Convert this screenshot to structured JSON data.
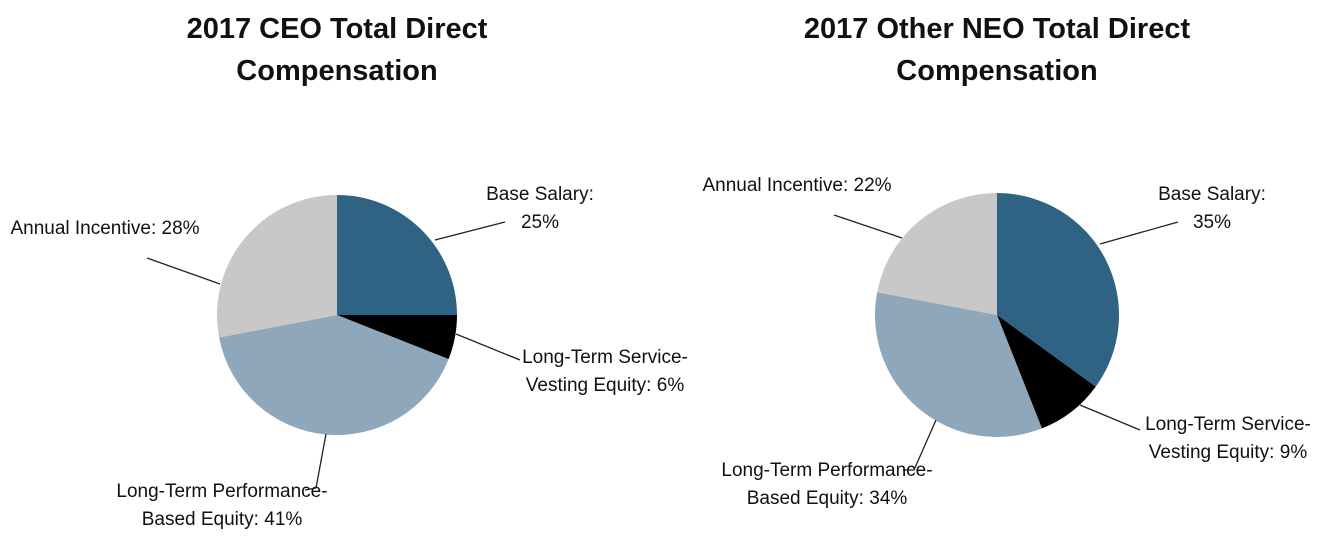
{
  "chart_data": [
    {
      "type": "pie",
      "title": "2017 CEO Total Direct Compensation",
      "categories": [
        "Base Salary:",
        "Long-Term Service-Vesting Equity:",
        "Long-Term Performance-Based Equity:",
        "Annual Incentive:"
      ],
      "values": [
        25,
        6,
        41,
        28
      ],
      "value_labels": [
        "25%",
        "6%",
        "41%",
        "28%"
      ],
      "colors": [
        "#2e6384",
        "#000000",
        "#8fa7bb",
        "#c8c8c8"
      ]
    },
    {
      "type": "pie",
      "title": "2017 Other NEO Total Direct Compensation",
      "categories": [
        "Base Salary:",
        "Long-Term Service-Vesting Equity:",
        "Long-Term Performance-Based Equity:",
        "Annual Incentive:"
      ],
      "values": [
        35,
        9,
        34,
        22
      ],
      "value_labels": [
        "35%",
        "9%",
        "34%",
        "22%"
      ],
      "colors": [
        "#2e6384",
        "#000000",
        "#8fa7bb",
        "#c8c8c8"
      ]
    }
  ]
}
